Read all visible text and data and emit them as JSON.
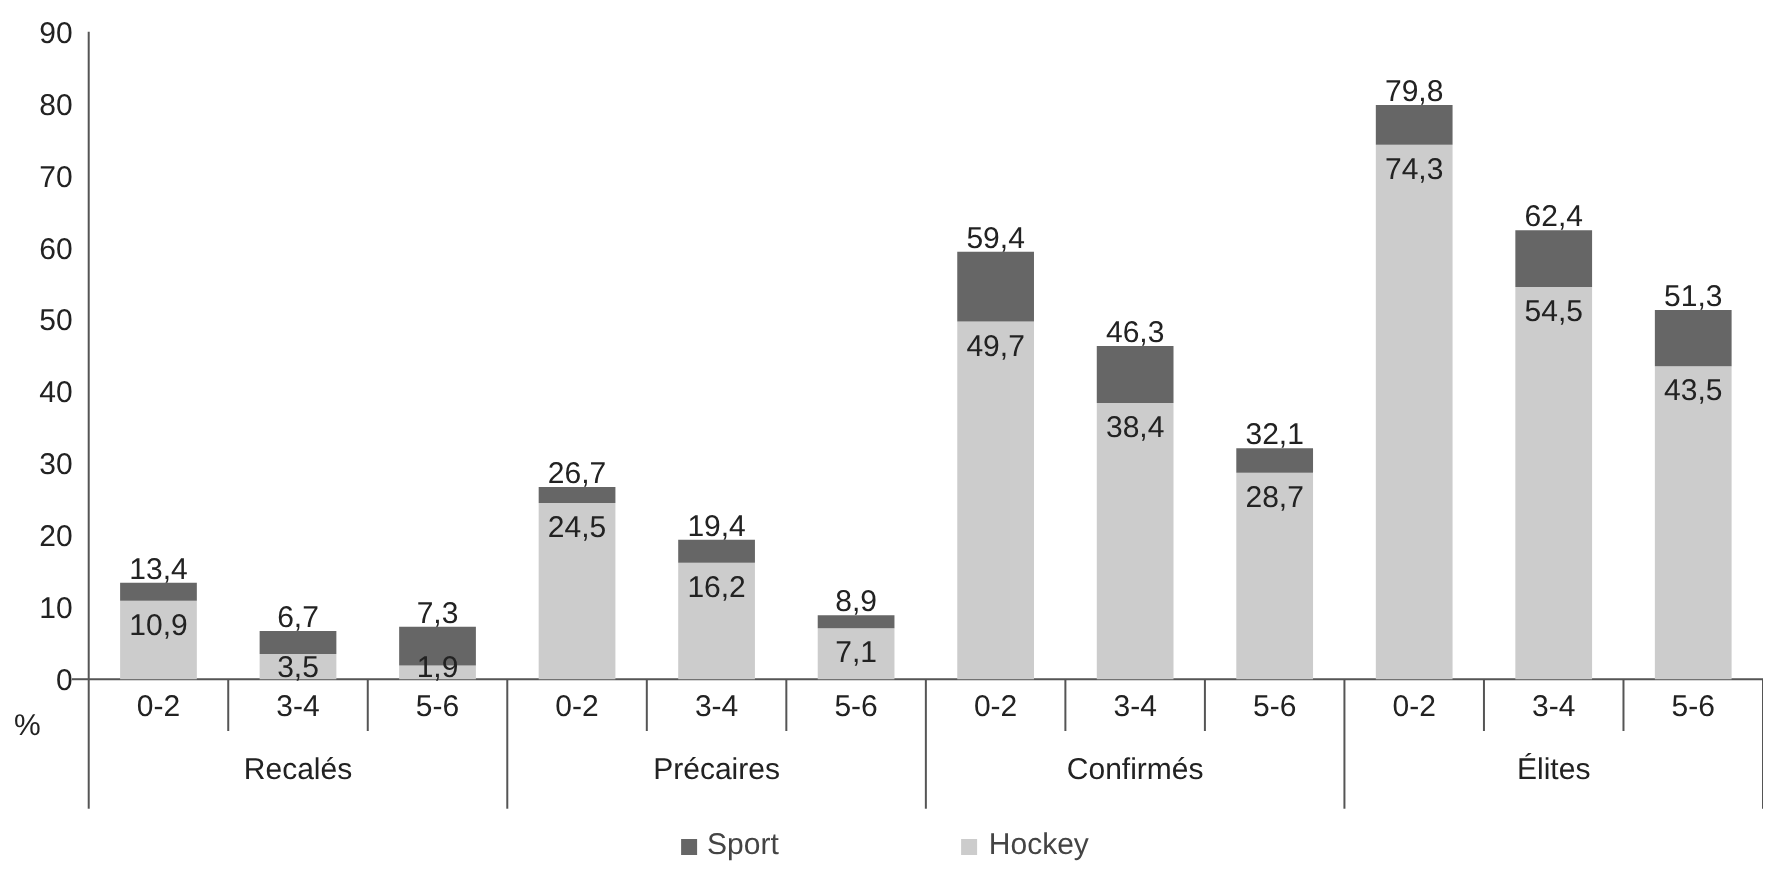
{
  "chart_data": {
    "type": "bar",
    "stacked": true,
    "ylabel": "%",
    "categories": [
      "0-2",
      "3-4",
      "5-6",
      "0-2",
      "3-4",
      "5-6",
      "0-2",
      "3-4",
      "5-6",
      "0-2",
      "3-4",
      "5-6"
    ],
    "annotations": [
      "Recalés",
      "Précaires",
      "Confirmés",
      "Élites"
    ],
    "series": [
      {
        "name": "Hockey",
        "color": "#cccccc",
        "values": [
          10.9,
          3.5,
          1.9,
          24.5,
          16.2,
          7.1,
          49.7,
          38.4,
          28.7,
          74.3,
          54.5,
          43.5
        ],
        "value_labels": [
          "10,9",
          "3,5",
          "1,9",
          "24,5",
          "16,2",
          "7,1",
          "49,7",
          "38,4",
          "28,7",
          "74,3",
          "54,5",
          "43,5"
        ]
      },
      {
        "name": "Sport",
        "color": "#666666",
        "values": [
          2.5,
          3.2,
          5.4,
          2.2,
          3.2,
          1.8,
          9.7,
          7.9,
          3.4,
          5.5,
          7.9,
          7.8
        ]
      }
    ],
    "totals": [
      "13,4",
      "6,7",
      "7,3",
      "26,7",
      "19,4",
      "8,9",
      "59,4",
      "46,3",
      "32,1",
      "79,8",
      "62,4",
      "51,3"
    ],
    "ylim": [
      0,
      90
    ],
    "yticks": [
      0,
      10,
      20,
      30,
      40,
      50,
      60,
      70,
      80,
      90
    ],
    "grid": false,
    "legend": "bottom"
  }
}
